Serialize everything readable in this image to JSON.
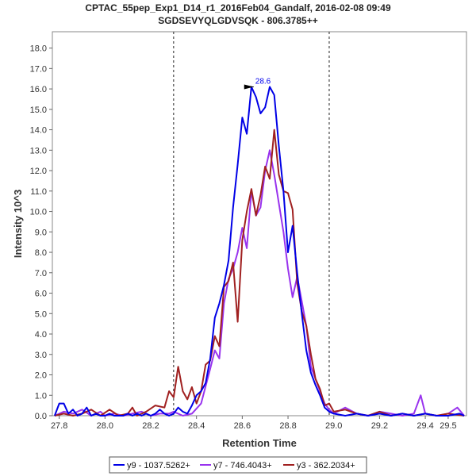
{
  "chart_data": {
    "type": "line",
    "title": "CPTAC_55pep_Exp1_D14_r1_2016Feb04_Gandalf, 2016-02-08 09:49",
    "subtitle": "SGDSEVYQLGDVSQK - 806.3785++",
    "xlabel": "Retention Time",
    "ylabel": "Intensity 10^3",
    "xlim": [
      27.77,
      29.58
    ],
    "ylim": [
      0,
      18.8
    ],
    "x_ticks": [
      "27.8",
      "28.0",
      "28.2",
      "28.4",
      "28.6",
      "28.8",
      "29.0",
      "29.2",
      "29.4"
    ],
    "x_tick_values": [
      27.8,
      28.0,
      28.2,
      28.4,
      28.6,
      28.8,
      29.0,
      29.2,
      29.4
    ],
    "x_ticks_extra": "29.5",
    "x_tick_extra_value": 29.5,
    "y_ticks": [
      "0.0",
      "1.0",
      "2.0",
      "3.0",
      "4.0",
      "5.0",
      "6.0",
      "7.0",
      "8.0",
      "9.0",
      "10.0",
      "11.0",
      "12.0",
      "13.0",
      "14.0",
      "15.0",
      "16.0",
      "17.0",
      "18.0"
    ],
    "y_tick_values": [
      0,
      1,
      2,
      3,
      4,
      5,
      6,
      7,
      8,
      9,
      10,
      11,
      12,
      13,
      14,
      15,
      16,
      17,
      18
    ],
    "vlines": [
      28.3,
      28.98
    ],
    "annotation": {
      "x": 28.65,
      "y": 16.1,
      "text": "28.6"
    },
    "grid": false,
    "legend_position": "bottom",
    "series": [
      {
        "name": "y9 - 1037.5262+",
        "color": "#0000e6",
        "x": [
          27.78,
          27.8,
          27.82,
          27.84,
          27.86,
          27.88,
          27.9,
          27.92,
          27.94,
          27.96,
          27.98,
          28.0,
          28.02,
          28.04,
          28.06,
          28.08,
          28.1,
          28.12,
          28.14,
          28.16,
          28.18,
          28.2,
          28.22,
          28.24,
          28.26,
          28.28,
          28.3,
          28.32,
          28.34,
          28.36,
          28.38,
          28.4,
          28.42,
          28.44,
          28.46,
          28.48,
          28.5,
          28.52,
          28.54,
          28.56,
          28.58,
          28.6,
          28.62,
          28.64,
          28.66,
          28.68,
          28.7,
          28.72,
          28.74,
          28.76,
          28.78,
          28.8,
          28.82,
          28.84,
          28.86,
          28.88,
          28.9,
          28.92,
          28.94,
          28.96,
          28.98,
          29.0,
          29.05,
          29.1,
          29.15,
          29.2,
          29.25,
          29.3,
          29.35,
          29.4,
          29.45,
          29.5,
          29.55,
          29.57
        ],
        "values": [
          0.0,
          0.6,
          0.6,
          0.1,
          0.3,
          0.0,
          0.1,
          0.4,
          0.0,
          0.1,
          0.0,
          0.0,
          0.1,
          0.0,
          0.0,
          0.0,
          0.1,
          0.0,
          0.1,
          0.0,
          0.1,
          0.0,
          0.1,
          0.3,
          0.1,
          0.0,
          0.1,
          0.4,
          0.2,
          0.1,
          0.5,
          1.0,
          1.2,
          1.6,
          2.8,
          4.8,
          5.5,
          6.4,
          7.6,
          10.2,
          12.3,
          14.6,
          13.8,
          16.1,
          15.6,
          14.8,
          15.1,
          16.1,
          15.7,
          13.2,
          11.0,
          8.0,
          9.3,
          7.0,
          5.0,
          3.2,
          2.1,
          1.5,
          1.0,
          0.4,
          0.2,
          0.1,
          0.0,
          0.1,
          0.0,
          0.1,
          0.0,
          0.1,
          0.0,
          0.1,
          0.0,
          0.0,
          0.1,
          0.0
        ]
      },
      {
        "name": "y7 - 746.4043+",
        "color": "#9933ee",
        "x": [
          27.78,
          27.82,
          27.86,
          27.9,
          27.94,
          27.98,
          28.0,
          28.04,
          28.08,
          28.12,
          28.16,
          28.2,
          28.24,
          28.28,
          28.3,
          28.34,
          28.38,
          28.42,
          28.46,
          28.48,
          28.5,
          28.52,
          28.54,
          28.56,
          28.58,
          28.6,
          28.62,
          28.64,
          28.66,
          28.68,
          28.7,
          28.72,
          28.74,
          28.76,
          28.78,
          28.8,
          28.82,
          28.84,
          28.86,
          28.88,
          28.9,
          28.92,
          28.94,
          28.96,
          28.98,
          29.0,
          29.05,
          29.1,
          29.15,
          29.2,
          29.25,
          29.3,
          29.35,
          29.38,
          29.4,
          29.45,
          29.5,
          29.54,
          29.57
        ],
        "values": [
          0.0,
          0.2,
          0.1,
          0.3,
          0.0,
          0.2,
          0.0,
          0.1,
          0.0,
          0.1,
          0.2,
          0.0,
          0.1,
          0.1,
          0.2,
          0.0,
          0.1,
          0.6,
          2.3,
          3.2,
          2.8,
          5.5,
          6.7,
          7.2,
          8.0,
          9.2,
          8.2,
          11.0,
          9.8,
          10.2,
          12.0,
          13.0,
          11.8,
          10.4,
          9.0,
          7.2,
          5.8,
          6.8,
          5.6,
          4.4,
          2.4,
          1.8,
          1.2,
          0.6,
          0.3,
          0.1,
          0.4,
          0.1,
          0.0,
          0.2,
          0.1,
          0.0,
          0.1,
          1.0,
          0.1,
          0.0,
          0.1,
          0.4,
          0.0
        ]
      },
      {
        "name": "y3 - 362.2034+",
        "color": "#a02020",
        "x": [
          27.78,
          27.82,
          27.86,
          27.9,
          27.94,
          27.98,
          28.02,
          28.06,
          28.1,
          28.12,
          28.14,
          28.18,
          28.22,
          28.26,
          28.28,
          28.3,
          28.32,
          28.34,
          28.36,
          28.38,
          28.4,
          28.42,
          28.44,
          28.46,
          28.48,
          28.5,
          28.52,
          28.54,
          28.56,
          28.58,
          28.6,
          28.62,
          28.64,
          28.66,
          28.68,
          28.7,
          28.72,
          28.74,
          28.76,
          28.78,
          28.8,
          28.82,
          28.84,
          28.86,
          28.88,
          28.9,
          28.92,
          28.94,
          28.96,
          28.98,
          29.0,
          29.05,
          29.1,
          29.15,
          29.2,
          29.25,
          29.3,
          29.35,
          29.4,
          29.45,
          29.5,
          29.57
        ],
        "values": [
          0.0,
          0.1,
          0.0,
          0.1,
          0.3,
          0.0,
          0.3,
          0.0,
          0.1,
          0.4,
          0.0,
          0.2,
          0.5,
          0.4,
          1.2,
          0.9,
          2.4,
          1.2,
          0.8,
          1.4,
          0.6,
          1.2,
          2.5,
          2.7,
          3.9,
          3.4,
          6.3,
          6.6,
          7.5,
          4.6,
          8.6,
          10.0,
          11.1,
          9.8,
          10.8,
          12.2,
          11.6,
          14.0,
          11.8,
          11.0,
          10.9,
          10.1,
          6.5,
          5.1,
          4.4,
          3.0,
          1.8,
          1.3,
          0.5,
          0.6,
          0.2,
          0.3,
          0.1,
          0.0,
          0.2,
          0.0,
          0.1,
          0.0,
          0.1,
          0.0,
          0.1,
          0.0
        ]
      }
    ]
  }
}
